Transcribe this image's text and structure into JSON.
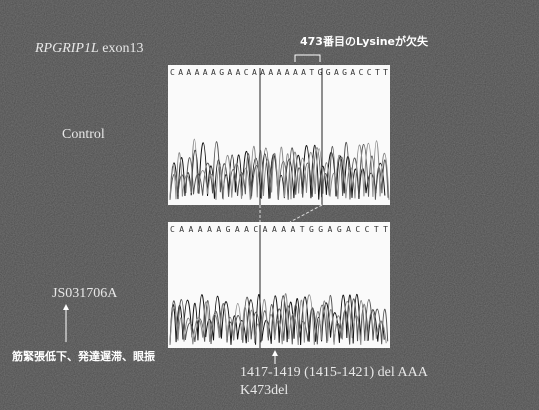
{
  "slide": {
    "title": {
      "gene": "RPGRIP1L",
      "exon": "exon13"
    },
    "annotation": "473番目のLysineが欠失",
    "control": {
      "label": "Control",
      "sequence": "CAAAAAGAACAAAAAAATGGAGACCTT"
    },
    "patient": {
      "label": "JS031706A",
      "sequence": "CAAAAAGAACAAAATGGAGACCTT",
      "symptoms": "筋緊張低下、発達遅滞、眼振"
    },
    "mutation": {
      "cdna": "1417-1419 (1415-1421) del AAA",
      "protein": "K473del"
    }
  }
}
